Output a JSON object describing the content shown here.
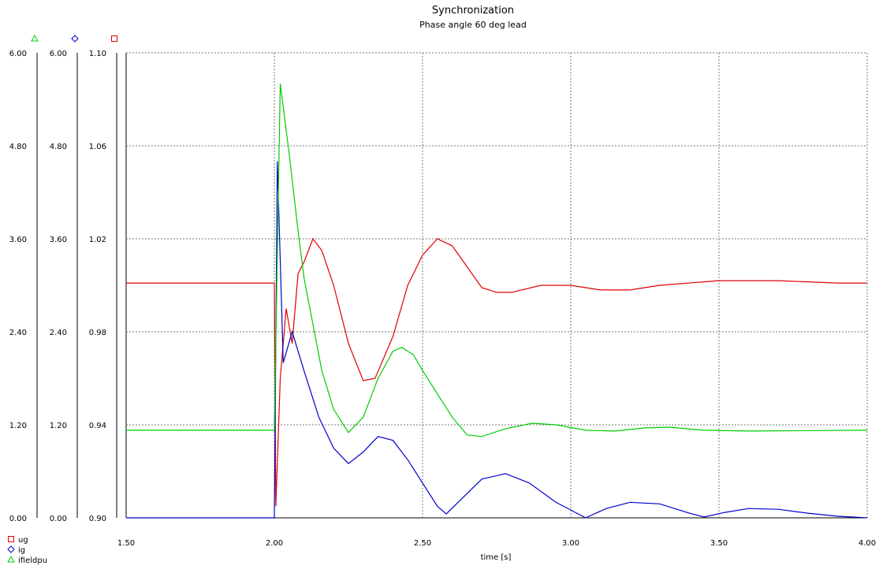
{
  "chart_data": {
    "type": "line",
    "title": "Synchronization",
    "subtitle": "Phase angle 60 deg lead",
    "xlabel": "time [s]",
    "xlim": [
      1.5,
      4.0
    ],
    "x_ticks": [
      "1.50",
      "2.00",
      "2.50",
      "3.00",
      "3.50",
      "4.00"
    ],
    "grid": true,
    "legend_position": "bottom-left",
    "axes": [
      {
        "id": "ifieldpu",
        "marker": "triangle",
        "color": "#00cc00",
        "ylim": [
          0,
          6.0
        ],
        "ticks": [
          "0.00",
          "1.20",
          "2.40",
          "3.60",
          "4.80",
          "6.00"
        ]
      },
      {
        "id": "ig",
        "marker": "diamond",
        "color": "#0000cc",
        "ylim": [
          0,
          6.0
        ],
        "ticks": [
          "0.00",
          "1.20",
          "2.40",
          "3.60",
          "4.80",
          "6.00"
        ]
      },
      {
        "id": "ug",
        "marker": "square",
        "color": "#dd0000",
        "ylim": [
          0.9,
          1.1
        ],
        "ticks": [
          "0.90",
          "0.94",
          "0.98",
          "1.02",
          "1.06",
          "1.10"
        ]
      }
    ],
    "series": [
      {
        "name": "ug",
        "color": "#dd0000",
        "axis": "ug",
        "marker": "square",
        "points": [
          [
            1.5,
            1.001
          ],
          [
            2.0,
            1.001
          ],
          [
            2.005,
            0.905
          ],
          [
            2.02,
            0.96
          ],
          [
            2.04,
            0.99
          ],
          [
            2.06,
            0.975
          ],
          [
            2.08,
            1.005
          ],
          [
            2.1,
            1.01
          ],
          [
            2.13,
            1.02
          ],
          [
            2.16,
            1.015
          ],
          [
            2.2,
            1.0
          ],
          [
            2.25,
            0.975
          ],
          [
            2.3,
            0.959
          ],
          [
            2.34,
            0.96
          ],
          [
            2.4,
            0.978
          ],
          [
            2.45,
            1.0
          ],
          [
            2.5,
            1.013
          ],
          [
            2.55,
            1.02
          ],
          [
            2.6,
            1.017
          ],
          [
            2.65,
            1.008
          ],
          [
            2.7,
            0.999
          ],
          [
            2.75,
            0.997
          ],
          [
            2.8,
            0.997
          ],
          [
            2.9,
            1.0
          ],
          [
            3.0,
            1.0
          ],
          [
            3.1,
            0.998
          ],
          [
            3.2,
            0.998
          ],
          [
            3.3,
            1.0
          ],
          [
            3.5,
            1.002
          ],
          [
            3.7,
            1.002
          ],
          [
            3.9,
            1.001
          ],
          [
            4.0,
            1.001
          ]
        ]
      },
      {
        "name": "ig",
        "color": "#0000cc",
        "axis": "ig",
        "marker": "diamond",
        "points": [
          [
            1.5,
            0.0
          ],
          [
            2.0,
            0.0
          ],
          [
            2.01,
            4.6
          ],
          [
            2.03,
            2.0
          ],
          [
            2.06,
            2.4
          ],
          [
            2.1,
            1.9
          ],
          [
            2.15,
            1.3
          ],
          [
            2.2,
            0.9
          ],
          [
            2.25,
            0.7
          ],
          [
            2.3,
            0.85
          ],
          [
            2.35,
            1.05
          ],
          [
            2.4,
            1.0
          ],
          [
            2.45,
            0.75
          ],
          [
            2.5,
            0.45
          ],
          [
            2.55,
            0.15
          ],
          [
            2.58,
            0.05
          ],
          [
            2.62,
            0.2
          ],
          [
            2.7,
            0.5
          ],
          [
            2.78,
            0.57
          ],
          [
            2.86,
            0.45
          ],
          [
            2.95,
            0.2
          ],
          [
            3.05,
            0.0
          ],
          [
            3.12,
            0.12
          ],
          [
            3.2,
            0.2
          ],
          [
            3.3,
            0.18
          ],
          [
            3.4,
            0.06
          ],
          [
            3.45,
            0.01
          ],
          [
            3.52,
            0.07
          ],
          [
            3.6,
            0.12
          ],
          [
            3.7,
            0.11
          ],
          [
            3.8,
            0.06
          ],
          [
            3.9,
            0.02
          ],
          [
            4.0,
            0.0
          ]
        ]
      },
      {
        "name": "ifieldpu",
        "color": "#00cc00",
        "axis": "ifieldpu",
        "marker": "triangle",
        "points": [
          [
            1.5,
            1.13
          ],
          [
            2.0,
            1.13
          ],
          [
            2.02,
            5.6
          ],
          [
            2.05,
            4.7
          ],
          [
            2.08,
            3.7
          ],
          [
            2.1,
            3.1
          ],
          [
            2.13,
            2.5
          ],
          [
            2.16,
            1.9
          ],
          [
            2.2,
            1.4
          ],
          [
            2.25,
            1.1
          ],
          [
            2.3,
            1.3
          ],
          [
            2.35,
            1.8
          ],
          [
            2.4,
            2.15
          ],
          [
            2.43,
            2.2
          ],
          [
            2.47,
            2.1
          ],
          [
            2.5,
            1.9
          ],
          [
            2.55,
            1.6
          ],
          [
            2.6,
            1.3
          ],
          [
            2.65,
            1.07
          ],
          [
            2.7,
            1.05
          ],
          [
            2.78,
            1.15
          ],
          [
            2.87,
            1.22
          ],
          [
            2.95,
            1.2
          ],
          [
            3.05,
            1.13
          ],
          [
            3.15,
            1.12
          ],
          [
            3.25,
            1.16
          ],
          [
            3.33,
            1.17
          ],
          [
            3.45,
            1.13
          ],
          [
            3.6,
            1.12
          ],
          [
            4.0,
            1.13
          ]
        ]
      }
    ]
  }
}
